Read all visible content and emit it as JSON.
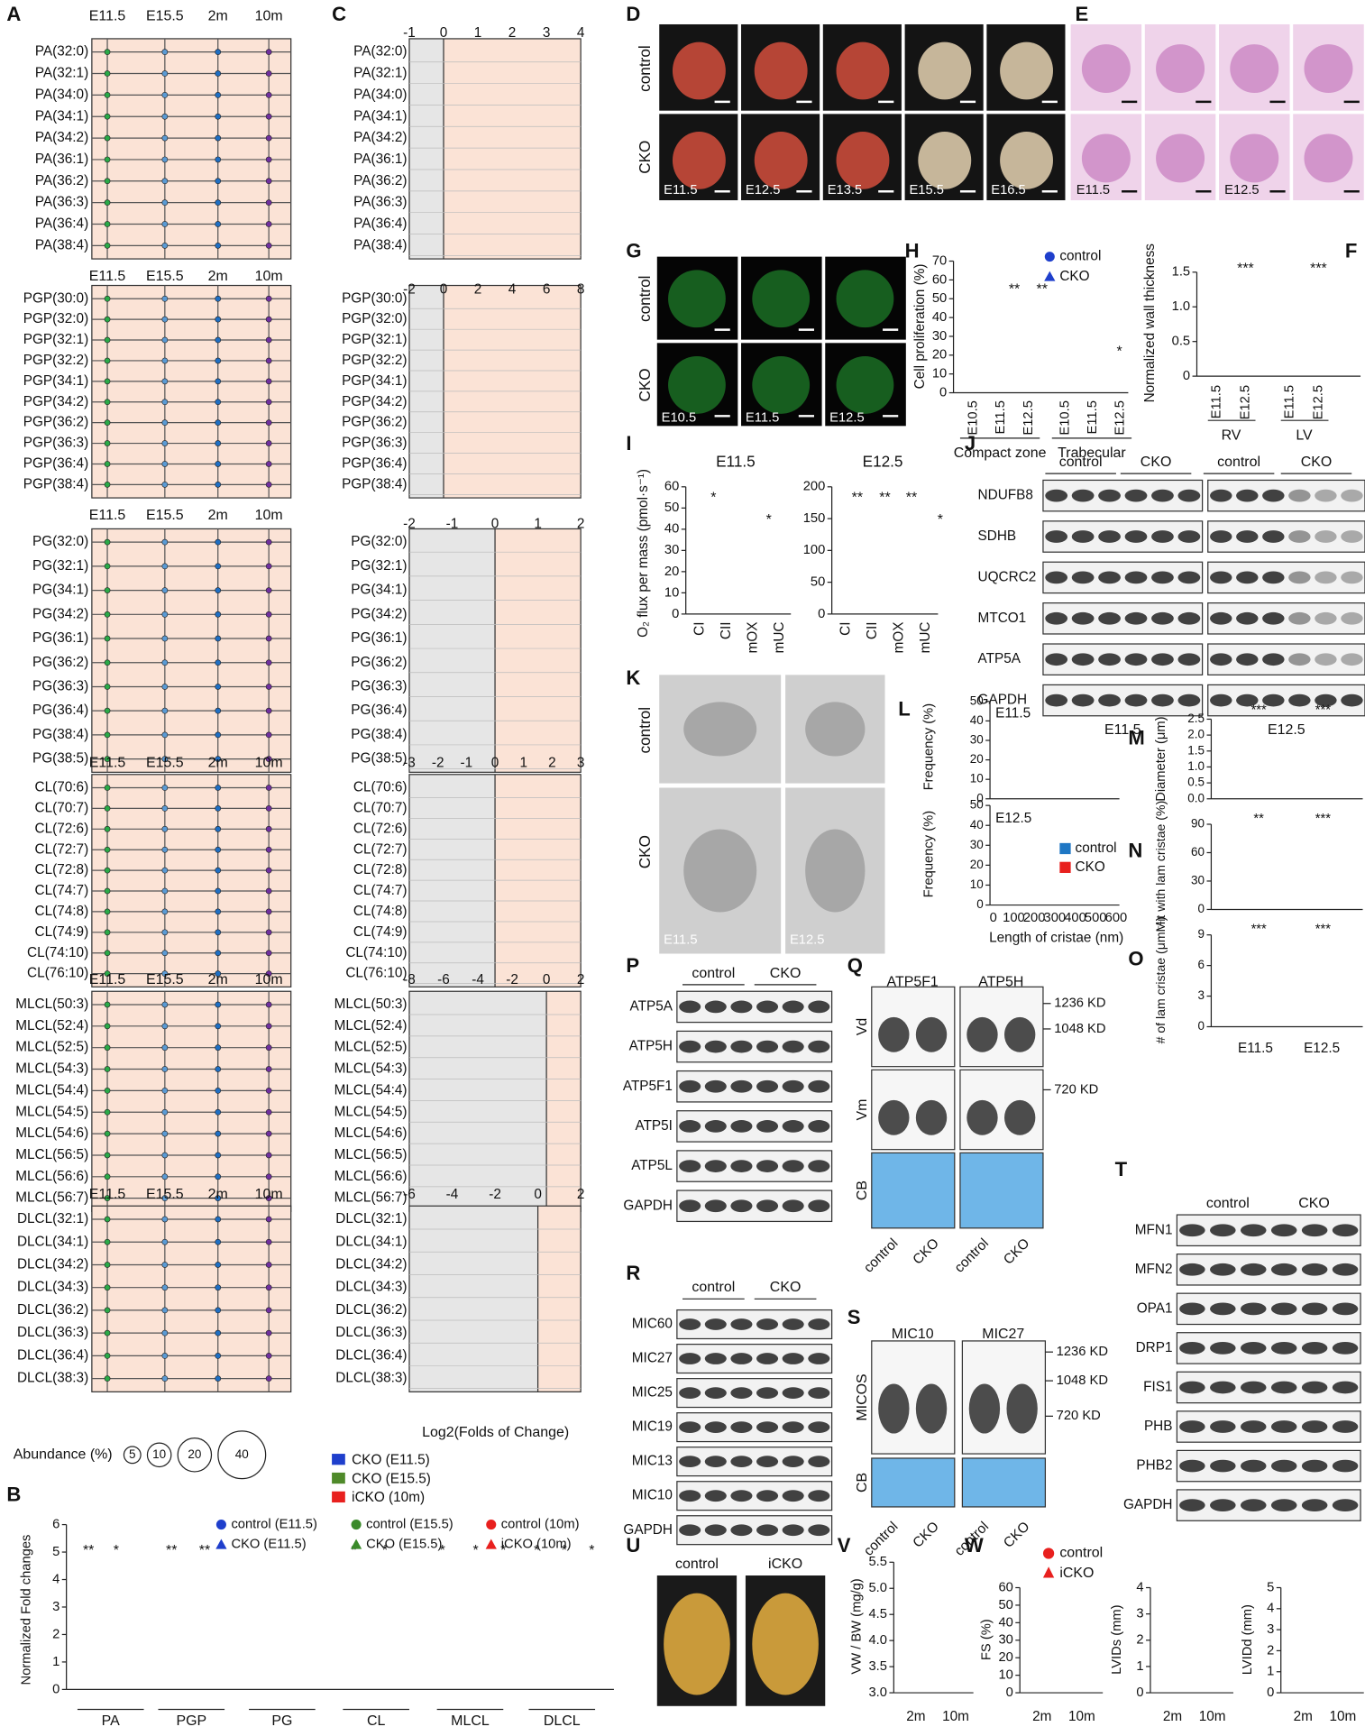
{
  "panels": {
    "A": {
      "label": "A",
      "columns": [
        "E11.5",
        "E15.5",
        "2m",
        "10m"
      ],
      "groups": [
        {
          "rows": [
            "PA(32:0)",
            "PA(32:1)",
            "PA(34:0)",
            "PA(34:1)",
            "PA(34:2)",
            "PA(36:1)",
            "PA(36:2)",
            "PA(36:3)",
            "PA(36:4)",
            "PA(38:4)"
          ]
        },
        {
          "rows": [
            "PGP(30:0)",
            "PGP(32:0)",
            "PGP(32:1)",
            "PGP(32:2)",
            "PGP(34:1)",
            "PGP(34:2)",
            "PGP(36:2)",
            "PGP(36:3)",
            "PGP(36:4)",
            "PGP(38:4)"
          ]
        },
        {
          "rows": [
            "PG(32:0)",
            "PG(32:1)",
            "PG(34:1)",
            "PG(34:2)",
            "PG(36:1)",
            "PG(36:2)",
            "PG(36:3)",
            "PG(36:4)",
            "PG(38:4)",
            "PG(38:5)"
          ]
        },
        {
          "rows": [
            "CL(70:6)",
            "CL(70:7)",
            "CL(72:6)",
            "CL(72:7)",
            "CL(72:8)",
            "CL(74:7)",
            "CL(74:8)",
            "CL(74:9)",
            "CL(74:10)",
            "CL(76:10)"
          ]
        },
        {
          "rows": [
            "MLCL(50:3)",
            "MLCL(52:4)",
            "MLCL(52:5)",
            "MLCL(54:3)",
            "MLCL(54:4)",
            "MLCL(54:5)",
            "MLCL(54:6)",
            "MLCL(56:5)",
            "MLCL(56:6)",
            "MLCL(56:7)"
          ]
        },
        {
          "rows": [
            "DLCL(32:1)",
            "DLCL(34:1)",
            "DLCL(34:2)",
            "DLCL(34:3)",
            "DLCL(36:2)",
            "DLCL(36:3)",
            "DLCL(36:4)",
            "DLCL(38:3)"
          ]
        }
      ],
      "legend_title": "Abundance (%)",
      "legend_sizes": [
        "5",
        "10",
        "20",
        "40"
      ]
    },
    "B": {
      "label": "B",
      "y_label": "Normalized Fold changes",
      "yticks": [
        "0",
        "1",
        "2",
        "3",
        "4",
        "5",
        "6"
      ],
      "categories": [
        "PA",
        "PGP",
        "PG",
        "CL",
        "MLCL",
        "DLCL"
      ],
      "legend": [
        "control (E11.5)",
        "CKO (E11.5)",
        "control (E15.5)",
        "CKO (E15.5)",
        "control (10m)",
        "iCKO (10m)"
      ],
      "stars": [
        "**",
        "*",
        "**",
        "**",
        "*",
        "*",
        "*",
        "*",
        "*",
        "*",
        "*",
        "*"
      ]
    },
    "C": {
      "label": "C",
      "ticks": [
        [
          "-1",
          "0",
          "1",
          "2",
          "3",
          "4"
        ],
        [
          "-2",
          "0",
          "2",
          "4",
          "6",
          "8"
        ],
        [
          "-2",
          "-1",
          "0",
          "1",
          "2"
        ],
        [
          "-3",
          "-2",
          "-1",
          "0",
          "1",
          "2",
          "3"
        ],
        [
          "-8",
          "-6",
          "-4",
          "-2",
          "0",
          "2"
        ],
        [
          "-6",
          "-4",
          "-2",
          "0",
          "2"
        ]
      ],
      "x_label": "Log2(Folds of Change)",
      "legend": [
        "CKO (E11.5)",
        "CKO (E15.5)",
        "iCKO (10m)"
      ]
    },
    "D": {
      "label": "D",
      "rows": [
        "control",
        "CKO"
      ],
      "stages": [
        "E11.5",
        "E12.5",
        "E13.5",
        "E15.5",
        "E16.5"
      ]
    },
    "E": {
      "label": "E",
      "stages": [
        "E11.5",
        "E12.5"
      ]
    },
    "G": {
      "label": "G",
      "rows": [
        "control",
        "CKO"
      ],
      "stages": [
        "E10.5",
        "E11.5",
        "E12.5"
      ]
    },
    "H": {
      "label": "H",
      "y_label": "Cell proliferation (%)",
      "yticks": [
        "0",
        "10",
        "20",
        "30",
        "40",
        "50",
        "60",
        "70"
      ],
      "legend": [
        "control",
        "CKO"
      ],
      "x_labels": [
        "E10.5",
        "E11.5",
        "E12.5",
        "E10.5",
        "E11.5",
        "E12.5"
      ],
      "groups": [
        "Compact zone",
        "Trabecular"
      ],
      "stars": [
        "**",
        "**",
        "*"
      ]
    },
    "F": {
      "label": "F",
      "y_label": "Normalized wall thickness",
      "yticks": [
        "0",
        "0.5",
        "1.0",
        "1.5"
      ],
      "x_labels": [
        "E11.5",
        "E12.5",
        "E11.5",
        "E12.5"
      ],
      "groups": [
        "RV",
        "LV"
      ],
      "stars": [
        "***",
        "***"
      ]
    },
    "I": {
      "label": "I",
      "y_label": "O₂ flux per mass (pmol·s⁻¹)",
      "titles": [
        "E11.5",
        "E12.5"
      ],
      "yticks_left": [
        "0",
        "10",
        "20",
        "30",
        "40",
        "50",
        "60"
      ],
      "yticks_right": [
        "0",
        "50",
        "100",
        "150",
        "200"
      ],
      "categories": [
        "CI",
        "CII",
        "mOX",
        "mUC"
      ],
      "stars_left": [
        "*",
        "*"
      ],
      "stars_right": [
        "**",
        "**",
        "**",
        "*"
      ]
    },
    "J": {
      "label": "J",
      "headers": [
        "control",
        "CKO",
        "control",
        "CKO"
      ],
      "rows": [
        "NDUFB8",
        "SDHB",
        "UQCRC2",
        "MTCO1",
        "ATP5A",
        "GAPDH"
      ],
      "stages": [
        "E11.5",
        "E12.5"
      ]
    },
    "K": {
      "label": "K",
      "rows": [
        "control",
        "CKO"
      ],
      "stages": [
        "E11.5",
        "E12.5"
      ]
    },
    "L": {
      "label": "L",
      "y_label": "Frequency (%)",
      "yticks": [
        "0",
        "10",
        "20",
        "30",
        "40",
        "50"
      ],
      "stages": [
        "E11.5",
        "E12.5"
      ],
      "xticks": [
        "0",
        "100",
        "200",
        "300",
        "400",
        "500",
        "600"
      ],
      "x_label": "Length of cristae (nm)",
      "legend": [
        "control",
        "CKO"
      ]
    },
    "M": {
      "label": "M",
      "y_label": "Diameter (μm)",
      "yticks": [
        "0.0",
        "0.5",
        "1.0",
        "1.5",
        "2.0",
        "2.5"
      ],
      "stars": [
        "***",
        "***"
      ]
    },
    "N": {
      "label": "N",
      "y_label": "Mit with lam cristae (%)",
      "yticks": [
        "0",
        "30",
        "60",
        "90"
      ],
      "stars": [
        "**",
        "***"
      ]
    },
    "O": {
      "label": "O",
      "y_label": "# of lam cristae (μm⁻¹)",
      "yticks": [
        "0",
        "3",
        "6",
        "9"
      ],
      "stars": [
        "***",
        "***"
      ],
      "x_labels": [
        "E11.5",
        "E12.5"
      ]
    },
    "P": {
      "label": "P",
      "headers": [
        "control",
        "CKO"
      ],
      "rows": [
        "ATP5A",
        "ATP5H",
        "ATP5F1",
        "ATP5I",
        "ATP5L",
        "GAPDH"
      ]
    },
    "Q": {
      "label": "Q",
      "columns": [
        "ATP5F1",
        "ATP5H"
      ],
      "rows": [
        "Vd",
        "Vm",
        "CB"
      ],
      "markers": [
        "1236 KD",
        "1048 KD",
        "720 KD"
      ],
      "x_labels": [
        "control",
        "CKO",
        "control",
        "CKO"
      ]
    },
    "R": {
      "label": "R",
      "headers": [
        "control",
        "CKO"
      ],
      "rows": [
        "MIC60",
        "MIC27",
        "MIC25",
        "MIC19",
        "MIC13",
        "MIC10",
        "GAPDH"
      ]
    },
    "S": {
      "label": "S",
      "columns": [
        "MIC10",
        "MIC27"
      ],
      "rows": [
        "MICOS",
        "CB"
      ],
      "markers": [
        "1236 KD",
        "1048 KD",
        "720 KD"
      ],
      "x_labels": [
        "control",
        "CKO",
        "control",
        "CKO"
      ]
    },
    "T": {
      "label": "T",
      "headers": [
        "control",
        "CKO"
      ],
      "rows": [
        "MFN1",
        "MFN2",
        "OPA1",
        "DRP1",
        "FIS1",
        "PHB",
        "PHB2",
        "GAPDH"
      ]
    },
    "U": {
      "label": "U",
      "columns": [
        "control",
        "iCKO"
      ]
    },
    "V": {
      "label": "V",
      "y_label": "VW / BW (mg/g)",
      "yticks": [
        "3.0",
        "3.5",
        "4.0",
        "4.5",
        "5.0",
        "5.5"
      ],
      "x_labels": [
        "2m",
        "10m"
      ]
    },
    "W": {
      "label": "W",
      "legend": [
        "control",
        "iCKO"
      ],
      "plots": [
        {
          "y_label": "FS (%)",
          "yticks": [
            "0",
            "10",
            "20",
            "30",
            "40",
            "50",
            "60"
          ]
        },
        {
          "y_label": "LVIDs (mm)",
          "yticks": [
            "0",
            "1",
            "2",
            "3",
            "4"
          ]
        },
        {
          "y_label": "LVIDd (mm)",
          "yticks": [
            "0",
            "1",
            "2",
            "3",
            "4",
            "5"
          ]
        }
      ],
      "x_labels": [
        "2m",
        "10m"
      ]
    }
  }
}
